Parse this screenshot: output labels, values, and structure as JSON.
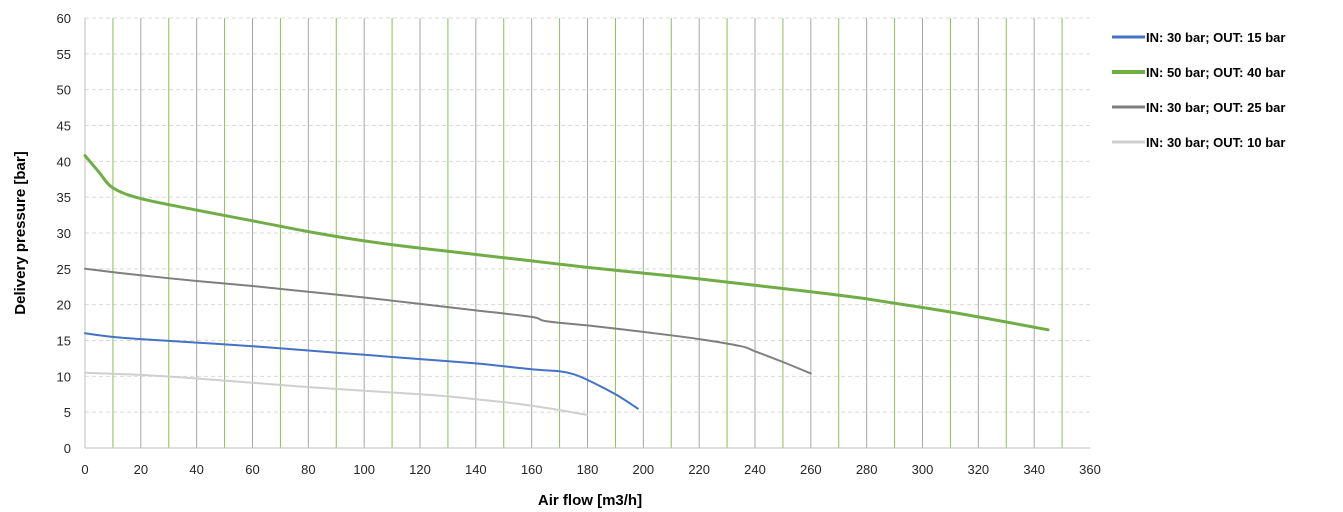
{
  "chart_data": {
    "type": "line",
    "xlabel": "Air flow [m3/h]",
    "ylabel": "Delivery pressure [bar]",
    "xlim": [
      0,
      360
    ],
    "ylim": [
      0,
      60
    ],
    "xticks": [
      0,
      20,
      40,
      60,
      80,
      100,
      120,
      140,
      160,
      180,
      200,
      220,
      240,
      260,
      280,
      300,
      320,
      340,
      360
    ],
    "yticks": [
      0,
      5,
      10,
      15,
      20,
      25,
      30,
      35,
      40,
      45,
      50,
      55,
      60
    ],
    "vertical_gridlines": {
      "green": [
        10,
        30,
        50,
        70,
        90,
        110,
        130,
        150,
        170,
        190,
        210,
        230,
        250,
        270,
        290,
        310,
        330,
        350
      ],
      "gray": [
        20,
        40,
        60,
        80,
        100,
        120,
        140,
        160,
        180,
        200,
        220,
        240,
        260,
        280,
        300,
        320,
        340
      ]
    },
    "horizontal_grid": "dashed",
    "legend_position": "right",
    "colors": {
      "grid_green": "#8cc152",
      "grid_gray": "#a6a6a6",
      "grid_dashed": "#d9d9d9",
      "axis": "#bfbfbf"
    },
    "series": [
      {
        "name": "IN: 30 bar; OUT: 15 bar",
        "color": "#4472c4",
        "width": 2,
        "x": [
          0,
          10,
          20,
          40,
          60,
          80,
          100,
          120,
          140,
          160,
          170,
          175,
          180,
          190,
          198
        ],
        "y": [
          16,
          15.5,
          15.2,
          14.7,
          14.2,
          13.6,
          13,
          12.4,
          11.8,
          11,
          10.7,
          10.3,
          9.5,
          7.5,
          5.5
        ]
      },
      {
        "name": "IN: 50 bar; OUT: 40 bar",
        "color": "#70ad47",
        "width": 3,
        "x": [
          0,
          5,
          10,
          20,
          40,
          60,
          80,
          100,
          120,
          140,
          160,
          180,
          200,
          220,
          240,
          260,
          280,
          300,
          320,
          345
        ],
        "y": [
          40.8,
          38.5,
          36.3,
          34.8,
          33.2,
          31.7,
          30.2,
          28.9,
          27.9,
          27,
          26.1,
          25.2,
          24.4,
          23.6,
          22.7,
          21.8,
          20.8,
          19.6,
          18.3,
          16.5
        ]
      },
      {
        "name": "IN: 30 bar; OUT: 25 bar",
        "color": "#7f7f7f",
        "width": 2,
        "x": [
          0,
          20,
          40,
          60,
          80,
          100,
          120,
          140,
          160,
          165,
          180,
          200,
          220,
          235,
          240,
          250,
          260
        ],
        "y": [
          25,
          24.1,
          23.3,
          22.6,
          21.8,
          21,
          20.1,
          19.2,
          18.3,
          17.7,
          17.1,
          16.2,
          15.2,
          14.2,
          13.5,
          12,
          10.4
        ]
      },
      {
        "name": "IN: 30 bar; OUT: 10 bar",
        "color": "#cfcfcf",
        "width": 2,
        "x": [
          0,
          20,
          40,
          60,
          80,
          100,
          120,
          130,
          140,
          150,
          160,
          170,
          180
        ],
        "y": [
          10.5,
          10.2,
          9.7,
          9.1,
          8.5,
          8,
          7.5,
          7.2,
          6.8,
          6.4,
          5.9,
          5.3,
          4.6
        ]
      }
    ]
  }
}
